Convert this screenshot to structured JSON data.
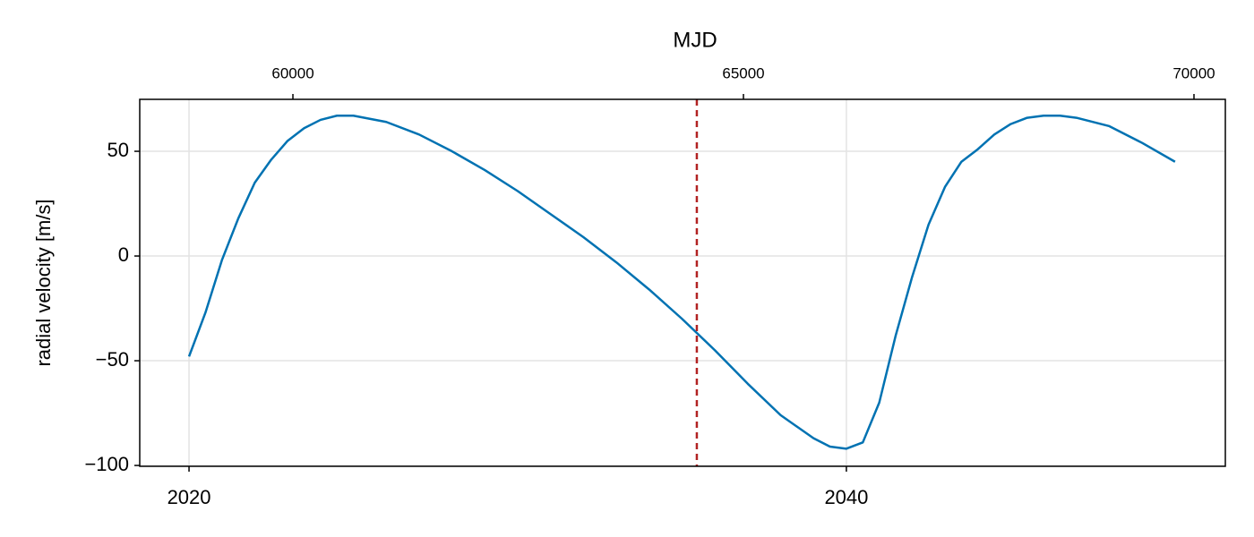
{
  "chart_data": {
    "type": "line",
    "ylabel": "radial velocity [m/s]",
    "x2label": "MJD",
    "x": [
      2020.0,
      2020.5,
      2021.0,
      2021.5,
      2022.0,
      2022.5,
      2023.0,
      2023.5,
      2024.0,
      2024.5,
      2025.0,
      2026.0,
      2027.0,
      2028.0,
      2029.0,
      2030.0,
      2031.0,
      2032.0,
      2033.0,
      2034.0,
      2035.0,
      2036.0,
      2037.0,
      2038.0,
      2039.0,
      2039.5,
      2040.0,
      2040.5,
      2041.0,
      2041.5,
      2042.0,
      2042.5,
      2043.0,
      2043.5,
      2044.0,
      2044.5,
      2045.0,
      2045.5,
      2046.0,
      2046.5,
      2047.0,
      2048.0,
      2049.0,
      2050.0
    ],
    "series": [
      {
        "color": "#0072b2",
        "values": [
          -48,
          -27,
          -2,
          18,
          35,
          46,
          55,
          61,
          65,
          67,
          67,
          64,
          58,
          50,
          41,
          31,
          20,
          9,
          -3,
          -16,
          -30,
          -45,
          -61,
          -76,
          -87,
          -91,
          -92,
          -89,
          -70,
          -38,
          -10,
          15,
          33,
          45,
          51,
          58,
          63,
          66,
          67,
          67,
          66,
          62,
          54,
          45
        ]
      }
    ],
    "xlim": [
      2018.5,
      2051.53
    ],
    "xticks": [
      2020,
      2040
    ],
    "x2lim": [
      58300,
      70348
    ],
    "x2ticks": [
      60000,
      65000,
      70000
    ],
    "ylim": [
      -100.4,
      74.8
    ],
    "yticks": [
      {
        "value": -100,
        "label": "−100"
      },
      {
        "value": -50,
        "label": "−50"
      },
      0,
      50
    ],
    "grid": true,
    "vline": {
      "x": 2035.45,
      "color": "#b22222"
    }
  }
}
